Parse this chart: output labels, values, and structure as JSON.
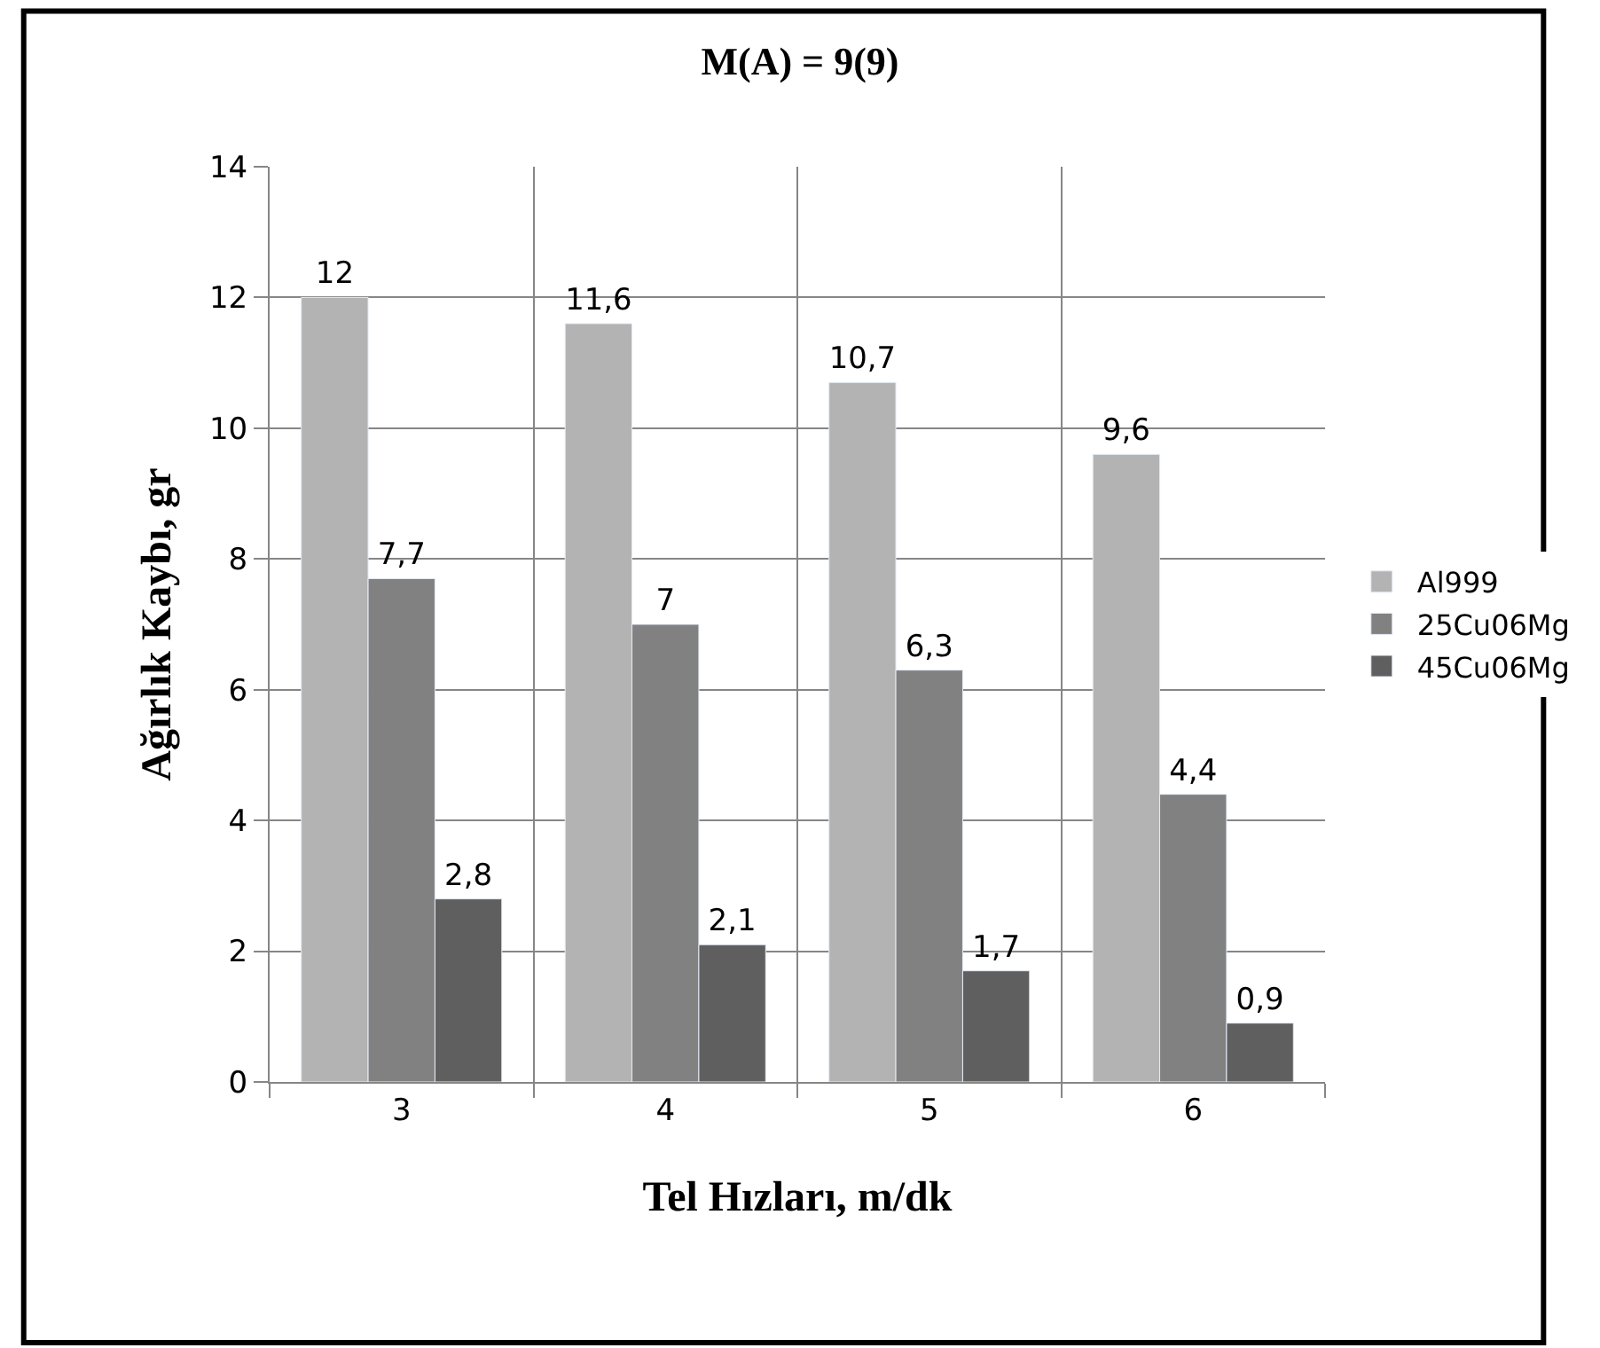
{
  "chart_data": {
    "type": "bar",
    "title": "M(A) = 9(9)",
    "xlabel": "Tel Hızları, m/dk",
    "ylabel": "Ağırlık Kaybı, gr",
    "categories": [
      "3",
      "4",
      "5",
      "6"
    ],
    "series": [
      {
        "name": "Al999",
        "color": "#b3b3b3",
        "values": [
          12,
          11.6,
          10.7,
          9.6
        ],
        "value_labels": [
          "12",
          "11,6",
          "10,7",
          "9,6"
        ]
      },
      {
        "name": "25Cu06Mg",
        "color": "#818181",
        "values": [
          7.7,
          7,
          6.3,
          4.4
        ],
        "value_labels": [
          "7,7",
          "7",
          "6,3",
          "4,4"
        ]
      },
      {
        "name": "45Cu06Mg",
        "color": "#5f5f5f",
        "values": [
          2.8,
          2.1,
          1.7,
          0.9
        ],
        "value_labels": [
          "2,8",
          "2,1",
          "1,7",
          "0,9"
        ]
      }
    ],
    "ylim": [
      0,
      14
    ],
    "yticks": [
      0,
      2,
      4,
      6,
      8,
      10,
      12,
      14
    ],
    "grid": true,
    "legend": "right"
  }
}
